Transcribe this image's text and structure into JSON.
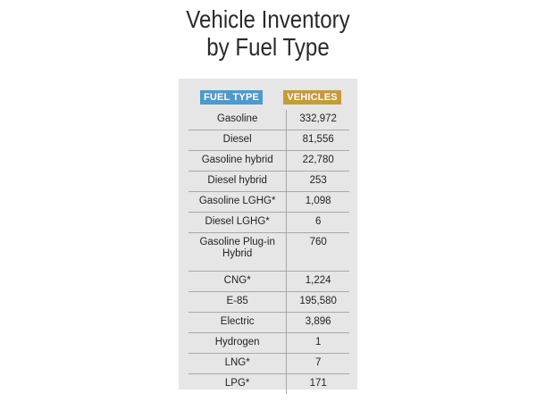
{
  "title": {
    "line1": "Vehicle Inventory",
    "line2": "by Fuel Type"
  },
  "headers": {
    "fuel_type": "FUEL TYPE",
    "vehicles": "VEHICLES"
  },
  "colors": {
    "fuel_header": "#4b9ad0",
    "vehicles_header": "#c79a36",
    "panel_background": "#e6e6e6"
  },
  "rows": [
    {
      "fuel": "Gasoline",
      "vehicles": "332,972"
    },
    {
      "fuel": "Diesel",
      "vehicles": "81,556"
    },
    {
      "fuel": "Gasoline hybrid",
      "vehicles": "22,780"
    },
    {
      "fuel": "Diesel hybrid",
      "vehicles": "253"
    },
    {
      "fuel": "Gasoline LGHG*",
      "vehicles": "1,098"
    },
    {
      "fuel": "Diesel LGHG*",
      "vehicles": "6"
    },
    {
      "fuel": "Gasoline Plug-in Hybrid",
      "vehicles": "760"
    },
    {
      "fuel": "CNG*",
      "vehicles": "1,224"
    },
    {
      "fuel": "E-85",
      "vehicles": "195,580"
    },
    {
      "fuel": "Electric",
      "vehicles": "3,896"
    },
    {
      "fuel": "Hydrogen",
      "vehicles": "1"
    },
    {
      "fuel": "LNG*",
      "vehicles": "7"
    },
    {
      "fuel": "LPG*",
      "vehicles": "171"
    }
  ]
}
